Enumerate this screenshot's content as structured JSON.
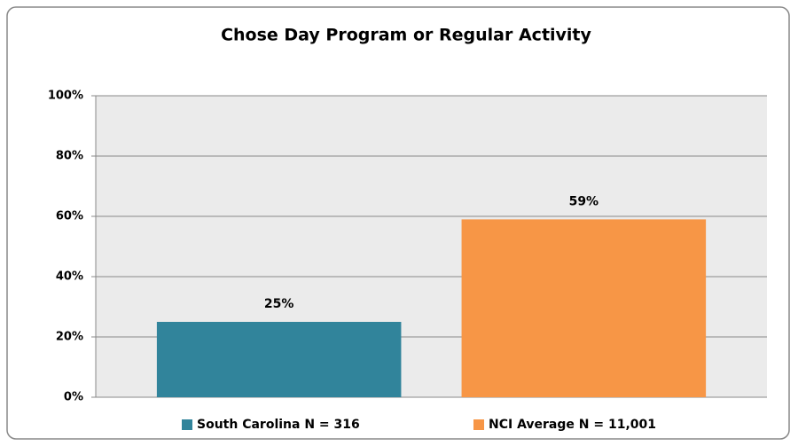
{
  "chart_data": {
    "type": "bar",
    "title": "Chose Day Program or Regular Activity",
    "categories": [
      null
    ],
    "series": [
      {
        "name": "South Carolina N = 316",
        "color": "#31849b",
        "values": [
          25
        ],
        "value_labels": [
          "25%"
        ]
      },
      {
        "name": "NCI Average N = 11,001",
        "color": "#f79646",
        "values": [
          59
        ],
        "value_labels": [
          "59%"
        ]
      }
    ],
    "ylim": [
      0,
      100
    ],
    "yticks": [
      {
        "value": 0,
        "label": "0%"
      },
      {
        "value": 20,
        "label": "20%"
      },
      {
        "value": 40,
        "label": "40%"
      },
      {
        "value": 60,
        "label": "60%"
      },
      {
        "value": 80,
        "label": "80%"
      },
      {
        "value": 100,
        "label": "100%"
      }
    ],
    "grid": true,
    "legend": "bottom"
  }
}
